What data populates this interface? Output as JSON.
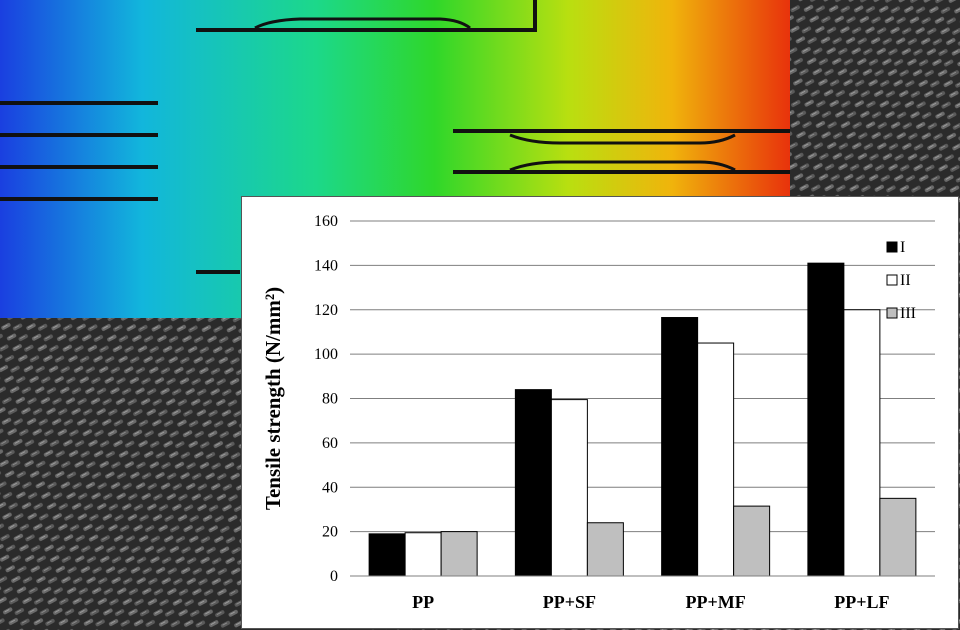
{
  "colors": {
    "panel_background": "#ffffff",
    "gridline": "#7f7f7f",
    "series_I": "#000000",
    "series_II": "#ffffff",
    "series_III": "#bfbfbf"
  },
  "chart_data": {
    "type": "bar",
    "ylabel": "Tensile strength (N/mm²)",
    "xlabel": "",
    "ylim": [
      0,
      160
    ],
    "yticks": [
      0,
      20,
      40,
      60,
      80,
      100,
      120,
      140,
      160
    ],
    "grid": true,
    "legend_placement": "top-right",
    "categories": [
      "PP",
      "PP+SF",
      "PP+MF",
      "PP+LF"
    ],
    "series": [
      {
        "name": "I",
        "color": "#000000",
        "values": [
          19,
          84,
          116.5,
          141
        ]
      },
      {
        "name": "II",
        "color": "#ffffff",
        "values": [
          19.5,
          79.5,
          105,
          120
        ]
      },
      {
        "name": "III",
        "color": "#bfbfbf",
        "values": [
          20,
          24,
          31.5,
          35
        ]
      }
    ]
  }
}
